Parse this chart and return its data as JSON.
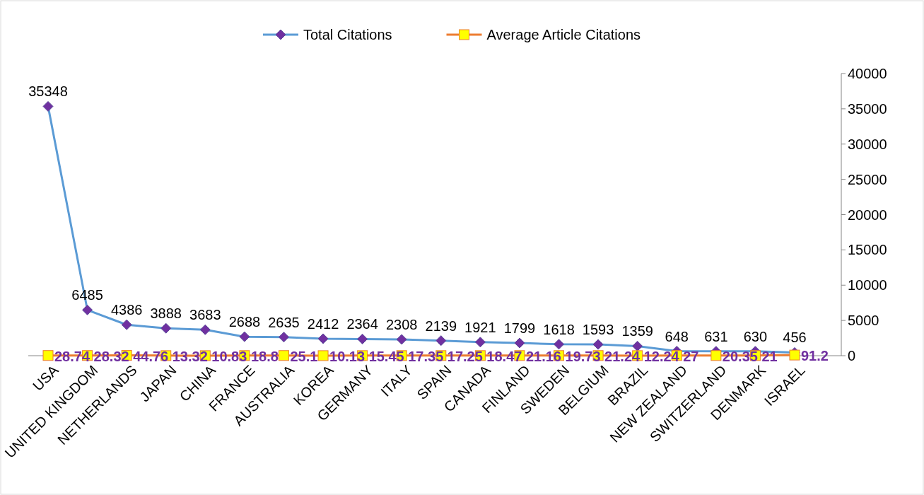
{
  "chart_data": {
    "type": "line",
    "categories": [
      "USA",
      "UNITED KINGDOM",
      "NETHERLANDS",
      "JAPAN",
      "CHINA",
      "FRANCE",
      "AUSTRALIA",
      "KOREA",
      "GERMANY",
      "ITALY",
      "SPAIN",
      "CANADA",
      "FINLAND",
      "SWEDEN",
      "BELGIUM",
      "BRAZIL",
      "NEW ZEALAND",
      "SWITZERLAND",
      "DENMARK",
      "ISRAEL"
    ],
    "series": [
      {
        "name": "Total Citations",
        "color": "#5b9bd5",
        "marker": "diamond",
        "values": [
          35348,
          6485,
          4386,
          3888,
          3683,
          2688,
          2635,
          2412,
          2364,
          2308,
          2139,
          1921,
          1799,
          1618,
          1593,
          1359,
          648,
          631,
          630,
          456
        ]
      },
      {
        "name": "Average Article Citations",
        "color": "#ed7d31",
        "marker": "square",
        "values": [
          28.74,
          28.32,
          44.76,
          13.32,
          10.83,
          18.8,
          25.1,
          10.13,
          15.45,
          17.35,
          17.25,
          18.47,
          21.16,
          19.73,
          21.24,
          12.24,
          27,
          20.35,
          21,
          91.2
        ]
      }
    ],
    "ylim": [
      0,
      40000
    ],
    "yticks": [
      0,
      5000,
      10000,
      15000,
      20000,
      25000,
      30000,
      35000,
      40000
    ],
    "grid": false,
    "legend": "top",
    "data_labels": true,
    "line_style": "solid"
  }
}
